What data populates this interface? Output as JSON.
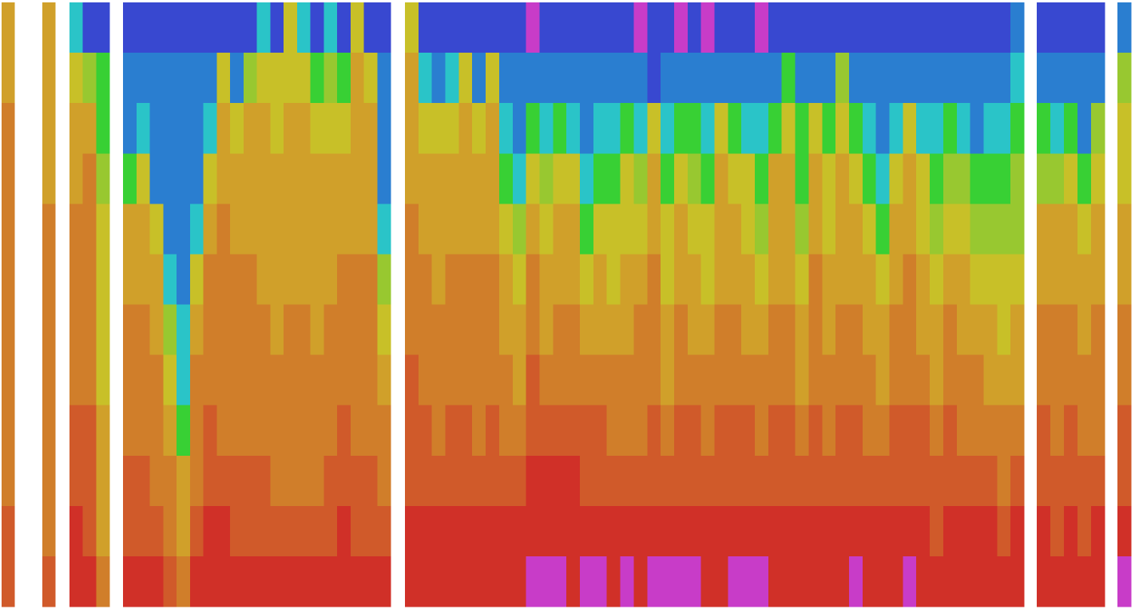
{
  "palette": [
    "#c83cc8",
    "#3848d0",
    "#2a7ed0",
    "#2ac4c8",
    "#38d034",
    "#98c830",
    "#c8c028",
    "#d0a02a",
    "#d07e2a",
    "#d05a2a",
    "#d03028"
  ],
  "groups": [
    [
      [
        7,
        7,
        8,
        8,
        8,
        8,
        8,
        8,
        8,
        8,
        9,
        9
      ]
    ],
    [
      [
        7,
        7,
        7,
        7,
        8,
        8,
        8,
        8,
        8,
        8,
        8,
        9
      ]
    ],
    [
      [
        3,
        6,
        7,
        7,
        8,
        8,
        8,
        8,
        9,
        9,
        10,
        10
      ],
      [
        1,
        5,
        7,
        8,
        8,
        8,
        8,
        8,
        9,
        9,
        9,
        10
      ],
      [
        1,
        4,
        4,
        5,
        6,
        6,
        6,
        6,
        7,
        7,
        7,
        8
      ]
    ],
    [
      [
        1,
        2,
        2,
        4,
        7,
        7,
        8,
        8,
        8,
        9,
        9,
        10
      ],
      [
        1,
        2,
        3,
        6,
        7,
        7,
        8,
        8,
        8,
        9,
        9,
        10
      ],
      [
        1,
        2,
        2,
        2,
        6,
        7,
        7,
        8,
        8,
        8,
        9,
        10
      ],
      [
        1,
        2,
        2,
        2,
        2,
        3,
        5,
        6,
        7,
        8,
        8,
        9
      ],
      [
        1,
        2,
        2,
        2,
        2,
        2,
        3,
        3,
        4,
        7,
        7,
        8
      ],
      [
        1,
        2,
        2,
        2,
        3,
        6,
        7,
        8,
        8,
        8,
        9,
        10
      ],
      [
        1,
        2,
        3,
        6,
        7,
        8,
        8,
        8,
        9,
        9,
        10,
        10
      ],
      [
        1,
        6,
        7,
        7,
        8,
        8,
        8,
        8,
        8,
        9,
        10,
        10
      ],
      [
        1,
        2,
        6,
        7,
        7,
        8,
        8,
        8,
        8,
        9,
        9,
        10
      ],
      [
        1,
        5,
        7,
        7,
        7,
        8,
        8,
        8,
        8,
        9,
        9,
        10
      ],
      [
        3,
        6,
        7,
        7,
        7,
        7,
        8,
        8,
        8,
        9,
        9,
        10
      ],
      [
        1,
        6,
        6,
        7,
        7,
        7,
        7,
        8,
        8,
        8,
        9,
        10
      ],
      [
        6,
        6,
        7,
        7,
        7,
        7,
        8,
        8,
        8,
        8,
        9,
        10
      ],
      [
        3,
        6,
        7,
        7,
        7,
        7,
        8,
        8,
        8,
        8,
        9,
        10
      ],
      [
        1,
        4,
        6,
        7,
        7,
        7,
        7,
        8,
        8,
        8,
        9,
        10
      ],
      [
        3,
        5,
        6,
        7,
        7,
        7,
        8,
        8,
        8,
        9,
        9,
        10
      ],
      [
        1,
        4,
        6,
        7,
        7,
        8,
        8,
        8,
        9,
        9,
        10,
        10
      ],
      [
        6,
        7,
        7,
        7,
        7,
        8,
        8,
        8,
        8,
        9,
        9,
        10
      ],
      [
        1,
        6,
        7,
        7,
        7,
        8,
        8,
        8,
        8,
        9,
        9,
        10
      ],
      [
        1,
        2,
        2,
        2,
        3,
        5,
        6,
        7,
        8,
        8,
        9,
        10
      ]
    ],
    [
      [
        6,
        7,
        7,
        7,
        8,
        8,
        8,
        9,
        9,
        9,
        10,
        10
      ],
      [
        1,
        3,
        6,
        7,
        7,
        8,
        8,
        8,
        9,
        9,
        10,
        10
      ],
      [
        1,
        2,
        6,
        7,
        7,
        7,
        8,
        8,
        8,
        9,
        10,
        10
      ],
      [
        1,
        3,
        6,
        7,
        7,
        8,
        8,
        8,
        9,
        9,
        10,
        10
      ],
      [
        1,
        6,
        7,
        7,
        7,
        8,
        8,
        8,
        9,
        9,
        10,
        10
      ],
      [
        1,
        2,
        6,
        7,
        7,
        8,
        8,
        8,
        8,
        9,
        10,
        10
      ],
      [
        1,
        6,
        7,
        7,
        7,
        8,
        8,
        8,
        9,
        9,
        10,
        10
      ],
      [
        1,
        2,
        3,
        4,
        6,
        7,
        7,
        8,
        8,
        9,
        10,
        10
      ],
      [
        1,
        2,
        2,
        3,
        5,
        6,
        7,
        7,
        8,
        9,
        10,
        10
      ],
      [
        0,
        2,
        4,
        6,
        7,
        8,
        8,
        9,
        9,
        10,
        10,
        0
      ],
      [
        1,
        2,
        3,
        5,
        6,
        7,
        7,
        8,
        9,
        10,
        10,
        0
      ],
      [
        1,
        2,
        4,
        6,
        7,
        7,
        8,
        8,
        9,
        10,
        10,
        0
      ],
      [
        1,
        2,
        3,
        6,
        7,
        7,
        8,
        8,
        9,
        10,
        10,
        10
      ],
      [
        1,
        2,
        2,
        3,
        4,
        6,
        7,
        8,
        9,
        9,
        10,
        0
      ],
      [
        1,
        2,
        3,
        4,
        6,
        7,
        7,
        8,
        9,
        9,
        10,
        0
      ],
      [
        1,
        2,
        3,
        4,
        6,
        6,
        7,
        8,
        8,
        9,
        10,
        10
      ],
      [
        1,
        2,
        4,
        6,
        6,
        7,
        7,
        8,
        8,
        9,
        10,
        0
      ],
      [
        0,
        2,
        3,
        5,
        6,
        7,
        8,
        8,
        8,
        9,
        10,
        10
      ],
      [
        1,
        1,
        6,
        7,
        7,
        8,
        8,
        8,
        9,
        9,
        10,
        0
      ],
      [
        1,
        2,
        3,
        4,
        6,
        6,
        7,
        7,
        8,
        9,
        10,
        0
      ],
      [
        0,
        2,
        4,
        6,
        7,
        7,
        8,
        8,
        9,
        9,
        10,
        0
      ],
      [
        1,
        2,
        4,
        5,
        6,
        7,
        7,
        8,
        9,
        9,
        10,
        0
      ],
      [
        0,
        2,
        3,
        4,
        6,
        6,
        7,
        8,
        8,
        9,
        10,
        10
      ],
      [
        1,
        2,
        6,
        7,
        7,
        7,
        8,
        8,
        9,
        9,
        10,
        10
      ],
      [
        1,
        2,
        4,
        6,
        7,
        7,
        8,
        8,
        9,
        9,
        10,
        0
      ],
      [
        1,
        2,
        3,
        6,
        6,
        7,
        7,
        8,
        9,
        9,
        10,
        0
      ],
      [
        0,
        2,
        3,
        4,
        5,
        6,
        7,
        8,
        8,
        9,
        10,
        0
      ],
      [
        1,
        2,
        4,
        7,
        7,
        7,
        8,
        8,
        9,
        9,
        10,
        10
      ],
      [
        1,
        4,
        6,
        7,
        7,
        7,
        8,
        8,
        9,
        9,
        10,
        10
      ],
      [
        1,
        2,
        4,
        4,
        5,
        6,
        7,
        7,
        8,
        9,
        10,
        10
      ],
      [
        1,
        2,
        6,
        7,
        7,
        8,
        8,
        8,
        9,
        9,
        10,
        10
      ],
      [
        1,
        2,
        4,
        6,
        6,
        7,
        7,
        8,
        8,
        9,
        10,
        10
      ],
      [
        1,
        5,
        6,
        7,
        7,
        7,
        8,
        8,
        9,
        9,
        10,
        10
      ],
      [
        1,
        2,
        4,
        6,
        7,
        7,
        8,
        8,
        9,
        9,
        10,
        0
      ],
      [
        1,
        2,
        3,
        4,
        6,
        7,
        7,
        8,
        8,
        9,
        10,
        10
      ],
      [
        1,
        2,
        2,
        3,
        4,
        6,
        7,
        7,
        8,
        9,
        10,
        10
      ],
      [
        1,
        2,
        3,
        6,
        7,
        7,
        8,
        8,
        9,
        9,
        10,
        10
      ],
      [
        1,
        2,
        6,
        7,
        7,
        8,
        8,
        8,
        9,
        9,
        10,
        0
      ],
      [
        1,
        2,
        3,
        6,
        6,
        7,
        7,
        8,
        9,
        9,
        10,
        10
      ],
      [
        1,
        2,
        3,
        4,
        5,
        6,
        7,
        7,
        8,
        9,
        9,
        10
      ],
      [
        1,
        2,
        4,
        5,
        6,
        7,
        8,
        8,
        9,
        9,
        10,
        10
      ],
      [
        1,
        2,
        3,
        5,
        6,
        7,
        7,
        8,
        8,
        9,
        10,
        10
      ],
      [
        1,
        2,
        2,
        4,
        5,
        6,
        7,
        8,
        8,
        9,
        10,
        10
      ],
      [
        1,
        2,
        3,
        4,
        5,
        6,
        7,
        7,
        8,
        9,
        10,
        10
      ],
      [
        1,
        2,
        3,
        4,
        5,
        6,
        6,
        7,
        8,
        8,
        9,
        10
      ],
      [
        2,
        3,
        4,
        5,
        5,
        6,
        7,
        7,
        8,
        9,
        10,
        10
      ]
    ],
    [
      [
        1,
        2,
        4,
        5,
        7,
        7,
        8,
        8,
        9,
        9,
        10,
        10
      ],
      [
        1,
        2,
        3,
        5,
        7,
        7,
        8,
        8,
        8,
        9,
        9,
        10
      ],
      [
        1,
        2,
        4,
        6,
        7,
        7,
        8,
        8,
        9,
        9,
        10,
        10
      ],
      [
        1,
        2,
        2,
        4,
        6,
        7,
        7,
        8,
        8,
        9,
        9,
        10
      ],
      [
        1,
        2,
        5,
        6,
        7,
        7,
        8,
        8,
        8,
        9,
        10,
        10
      ]
    ],
    [
      [
        2,
        5,
        6,
        6,
        7,
        7,
        8,
        8,
        9,
        9,
        10,
        0
      ]
    ]
  ]
}
